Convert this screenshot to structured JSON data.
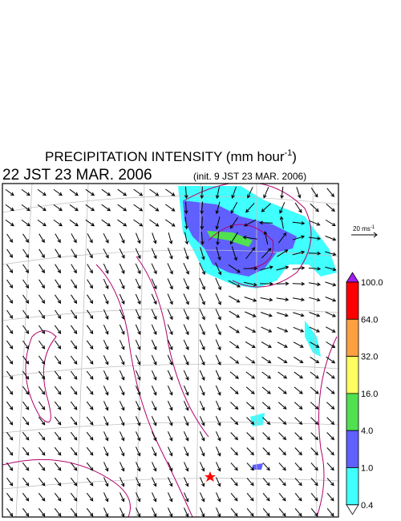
{
  "header": {
    "title_main": "PRECIPITATION INTENSITY (mm hour",
    "title_sup": "-1",
    "title_end": ")",
    "valid_time": "22 JST 23 MAR. 2006",
    "init_time": "(init. 9 JST 23 MAR. 2006)"
  },
  "reference_vector": {
    "label_main": "20 ms",
    "label_sup": "-1"
  },
  "colorbar": {
    "top_color": "#a020f0",
    "bottom_color": "#ffffff",
    "bands": [
      {
        "label": "100.0",
        "color": "#ff0000"
      },
      {
        "label": "64.0",
        "color": "#ffa040"
      },
      {
        "label": "32.0",
        "color": "#ffff60"
      },
      {
        "label": "16.0",
        "color": "#50e050"
      },
      {
        "label": "4.0",
        "color": "#6060ff"
      },
      {
        "label": "1.0",
        "color": "#40ffff"
      }
    ],
    "bottom_label": "0.4"
  }
}
